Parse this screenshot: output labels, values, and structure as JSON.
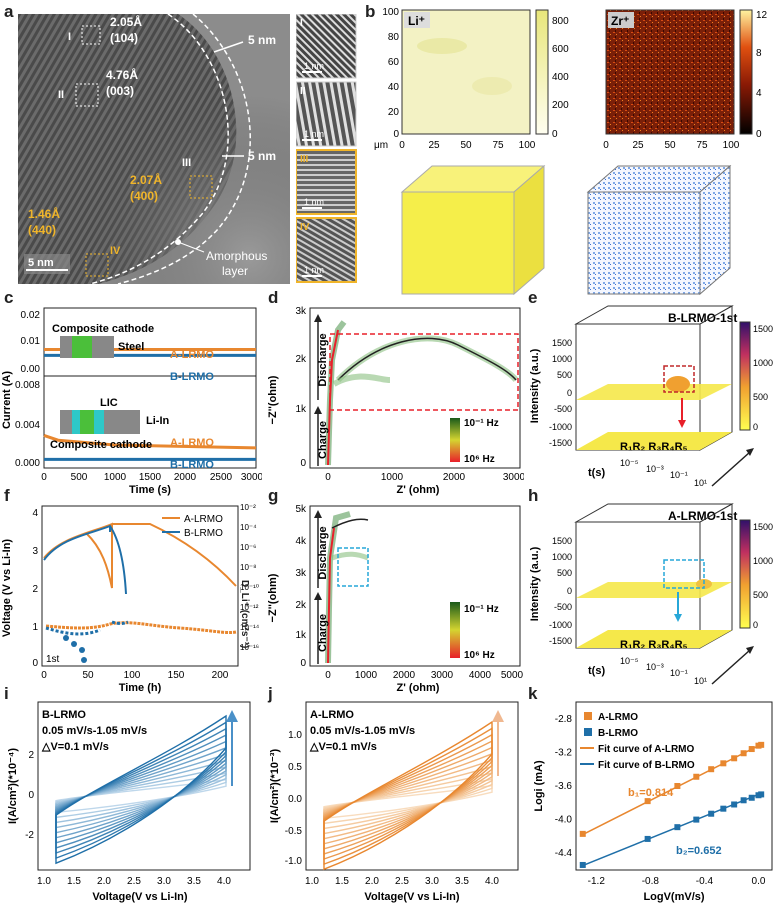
{
  "panels": {
    "a": {
      "letter": "a",
      "labels": {
        "I": "I",
        "II": "II",
        "III": "III",
        "IV": "IV",
        "d1": "2.05Å",
        "h1": "(104)",
        "d2": "4.76Å",
        "h2": "(003)",
        "d3": "2.07Å",
        "h3": "(400)",
        "d4": "1.46Å",
        "h4": "(440)",
        "t1": "5 nm",
        "t2": "5 nm",
        "scale": "5 nm",
        "amorphous1": "Amorphous",
        "amorphous2": "layer"
      },
      "insets": [
        {
          "roman": "I",
          "scale": "1 nm"
        },
        {
          "roman": "II",
          "scale": "1 nm"
        },
        {
          "roman": "III",
          "scale": "1 nm"
        },
        {
          "roman": "IV",
          "scale": "1 nm"
        }
      ]
    },
    "b": {
      "letter": "b",
      "ion1": "Li⁺",
      "ion2": "Zr⁺",
      "axis_unit": "μm",
      "ticks_y": [
        "100",
        "80",
        "60",
        "40",
        "20",
        "0"
      ],
      "ticks_x": [
        "0",
        "25",
        "50",
        "75",
        "100"
      ],
      "cbar1": [
        "800",
        "600",
        "400",
        "200",
        "0"
      ],
      "cbar2": [
        "12",
        "8",
        "4",
        "0"
      ],
      "colors": {
        "li": "#f3f2c4",
        "zr": "#8a2a10",
        "cube1": "#f5ee4a",
        "cube2": "#9ec4f0"
      }
    },
    "c": {
      "letter": "c",
      "top_inset": "Composite cathode",
      "steel": "Steel",
      "bot_lic": "LIC",
      "bot_liin": "Li-In",
      "bot_inset": "Composite cathode",
      "series_a": "A-LRMO",
      "series_b": "B-LRMO",
      "ylabel": "Current (A)",
      "xlabel": "Time (s)",
      "xticks": [
        "0",
        "500",
        "1000",
        "1500",
        "2000",
        "2500",
        "3000"
      ],
      "yticks_top": [
        "0.02",
        "0.01",
        "0.00"
      ],
      "yticks_bot": [
        "0.008",
        "0.004",
        "0.000"
      ]
    },
    "d": {
      "letter": "d",
      "ylabel": "−Z''(ohm)",
      "xlabel": "Z' (ohm)",
      "yticks": [
        "3k",
        "2k",
        "1k",
        "0"
      ],
      "xticks": [
        "0",
        "1000",
        "2000",
        "3000"
      ],
      "discharge": "Discharge",
      "charge": "Charge",
      "hz_low": "10⁻¹ Hz",
      "hz_high": "10⁶ Hz"
    },
    "e": {
      "letter": "e",
      "title": "B-LRMO-1st",
      "ylabel": "Intensity (a.u.)",
      "xlabel": "t(s)",
      "zticks": [
        "1500",
        "1000",
        "500",
        "0",
        "-500",
        "-1000",
        "-1500"
      ],
      "tticks": [
        "10⁻⁵",
        "10⁻³",
        "10⁻¹",
        "10¹"
      ],
      "peaks": "R₁R₂  R₃R₄R₅",
      "cbar": [
        "1500",
        "1000",
        "500",
        "0"
      ]
    },
    "f": {
      "letter": "f",
      "ylabel": "Voltage (V vs Li-In)",
      "xlabel": "Time (h)",
      "y2label": "D_Li⁺ (cm²s⁻¹)",
      "yticks": [
        "4",
        "3",
        "2",
        "1",
        "0"
      ],
      "xticks": [
        "0",
        "50",
        "100",
        "150",
        "200"
      ],
      "y2ticks": [
        "10⁻²",
        "10⁻⁴",
        "10⁻⁶",
        "10⁻⁸",
        "10⁻¹⁰",
        "10⁻¹²",
        "10⁻¹⁴",
        "10⁻¹⁶"
      ],
      "series_a": "A-LRMO",
      "series_b": "B-LRMO",
      "cycle": "1st"
    },
    "g": {
      "letter": "g",
      "ylabel": "−Z''(ohm)",
      "xlabel": "Z' (ohm)",
      "yticks": [
        "5k",
        "4k",
        "3k",
        "2k",
        "1k",
        "0"
      ],
      "xticks": [
        "0",
        "1000",
        "2000",
        "3000",
        "4000",
        "5000"
      ],
      "discharge": "Discharge",
      "charge": "Charge",
      "hz_low": "10⁻¹ Hz",
      "hz_high": "10⁶ Hz"
    },
    "h": {
      "letter": "h",
      "title": "A-LRMO-1st",
      "ylabel": "Intensity (a.u.)",
      "xlabel": "t(s)",
      "zticks": [
        "1500",
        "1000",
        "500",
        "0",
        "-500",
        "-1000",
        "-1500"
      ],
      "tticks": [
        "10⁻⁵",
        "10⁻³",
        "10⁻¹",
        "10¹"
      ],
      "peaks": "R₁R₂  R₃R₄R₅",
      "cbar": [
        "1500",
        "1000",
        "500",
        "0"
      ]
    },
    "i": {
      "letter": "i",
      "title": "B-LRMO",
      "rate": "0.05 mV/s-1.05 mV/s",
      "step": "△V=0.1 mV/s",
      "ylabel": "I(A/cm²)(*10⁻⁴)",
      "xlabel": "Voltage(V vs Li-In)",
      "yticks": [
        "2",
        "0",
        "-2"
      ],
      "xticks": [
        "1.0",
        "1.5",
        "2.0",
        "2.5",
        "3.0",
        "3.5",
        "4.0"
      ]
    },
    "j": {
      "letter": "j",
      "title": "A-LRMO",
      "rate": "0.05 mV/s-1.05 mV/s",
      "step": "△V=0.1 mV/s",
      "ylabel": "I(A/cm²)(*10⁻³)",
      "xlabel": "Voltage(V vs Li-In)",
      "yticks": [
        "1.0",
        "0.5",
        "0.0",
        "-0.5",
        "-1.0"
      ],
      "xticks": [
        "1.0",
        "1.5",
        "2.0",
        "2.5",
        "3.0",
        "3.5",
        "4.0"
      ]
    },
    "k": {
      "letter": "k",
      "ylabel": "Logi (mA)",
      "xlabel": "LogV(mV/s)",
      "yticks": [
        "-2.8",
        "-3.2",
        "-3.6",
        "-4.0",
        "-4.4"
      ],
      "xticks": [
        "-1.2",
        "-0.8",
        "-0.4",
        "0.0"
      ],
      "legend": [
        "A-LRMO",
        "B-LRMO",
        "Fit curve of A-LRMO",
        "Fit curve of B-LRMO"
      ],
      "b1": "b₁=0.814",
      "b2": "b₂=0.652"
    }
  },
  "chart_data": [
    {
      "type": "scatter",
      "panel": "k",
      "xlabel": "LogV(mV/s)",
      "ylabel": "Logi (mA)",
      "xlim": [
        -1.35,
        0.1
      ],
      "ylim": [
        -4.6,
        -2.6
      ],
      "series": [
        {
          "name": "A-LRMO",
          "color": "#e8872f",
          "x": [
            -1.3,
            -0.82,
            -0.6,
            -0.46,
            -0.35,
            -0.26,
            -0.18,
            -0.11,
            -0.05,
            0.0,
            0.02
          ],
          "y": [
            -4.17,
            -3.78,
            -3.6,
            -3.49,
            -3.4,
            -3.33,
            -3.27,
            -3.21,
            -3.16,
            -3.12,
            -3.11
          ]
        },
        {
          "name": "B-LRMO",
          "color": "#1f6fa8",
          "x": [
            -1.3,
            -0.82,
            -0.6,
            -0.46,
            -0.35,
            -0.26,
            -0.18,
            -0.11,
            -0.05,
            0.0,
            0.02
          ],
          "y": [
            -4.54,
            -4.23,
            -4.09,
            -4.0,
            -3.93,
            -3.87,
            -3.82,
            -3.77,
            -3.74,
            -3.71,
            -3.7
          ]
        }
      ],
      "fits": [
        {
          "name": "Fit curve of A-LRMO",
          "slope": 0.814,
          "intercept": -3.12
        },
        {
          "name": "Fit curve of B-LRMO",
          "slope": 0.652,
          "intercept": -3.7
        }
      ]
    },
    {
      "type": "line",
      "panel": "c",
      "xlabel": "Time (s)",
      "ylabel": "Current (A)",
      "xlim": [
        0,
        3000
      ],
      "series": [
        {
          "name": "A-LRMO",
          "subplot": "top",
          "color": "#e8872f",
          "x": [
            0,
            3000
          ],
          "y": [
            0.0085,
            0.0085
          ]
        },
        {
          "name": "B-LRMO",
          "subplot": "top",
          "color": "#1f6fa8",
          "x": [
            0,
            3000
          ],
          "y": [
            0.0062,
            0.0062
          ]
        },
        {
          "name": "A-LRMO",
          "subplot": "bottom",
          "color": "#e8872f",
          "x": [
            0,
            200,
            1000,
            3000
          ],
          "y": [
            0.0026,
            0.0021,
            0.0016,
            0.0013
          ]
        },
        {
          "name": "B-LRMO",
          "subplot": "bottom",
          "color": "#1f6fa8",
          "x": [
            0,
            3000
          ],
          "y": [
            0.0001,
            0.0001
          ]
        }
      ]
    }
  ]
}
